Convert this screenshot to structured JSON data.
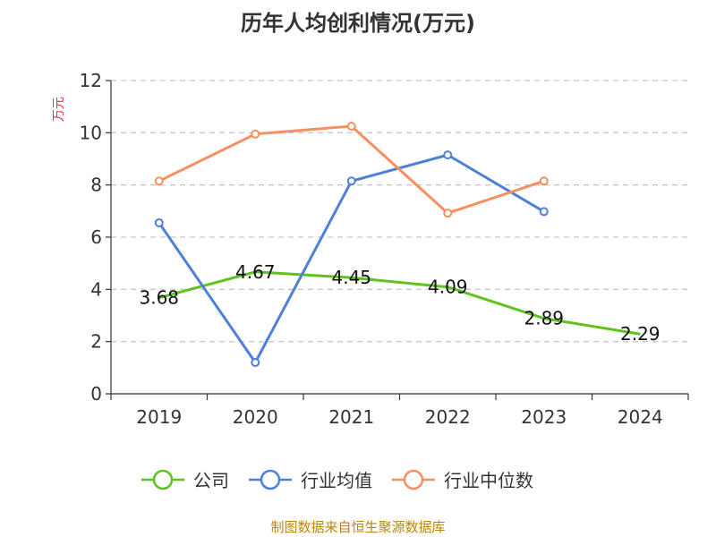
{
  "chart_data": {
    "type": "line",
    "title": "历年人均创利情况(万元)",
    "ylabel": "万元",
    "xlabel": "",
    "categories": [
      "2019",
      "2020",
      "2021",
      "2022",
      "2023",
      "2024"
    ],
    "ylim": [
      0,
      12
    ],
    "yticks": [
      "0",
      "2",
      "4",
      "6",
      "8",
      "10",
      "12"
    ],
    "grid": true,
    "legend_position": "bottom",
    "series": [
      {
        "name": "公司",
        "color": "#5fc31f",
        "values": [
          3.68,
          4.67,
          4.45,
          4.09,
          2.89,
          2.29
        ],
        "labels": [
          "3.68",
          "4.67",
          "4.45",
          "4.09",
          "2.89",
          "2.29"
        ]
      },
      {
        "name": "行业均值",
        "color": "#4e7fd9",
        "values": [
          6.55,
          1.2,
          8.15,
          9.15,
          6.98,
          null
        ]
      },
      {
        "name": "行业中位数",
        "color": "#f59060",
        "values": [
          8.15,
          9.95,
          10.25,
          6.92,
          8.15,
          null
        ]
      }
    ]
  },
  "source_text": "制图数据来自恒生聚源数据库"
}
